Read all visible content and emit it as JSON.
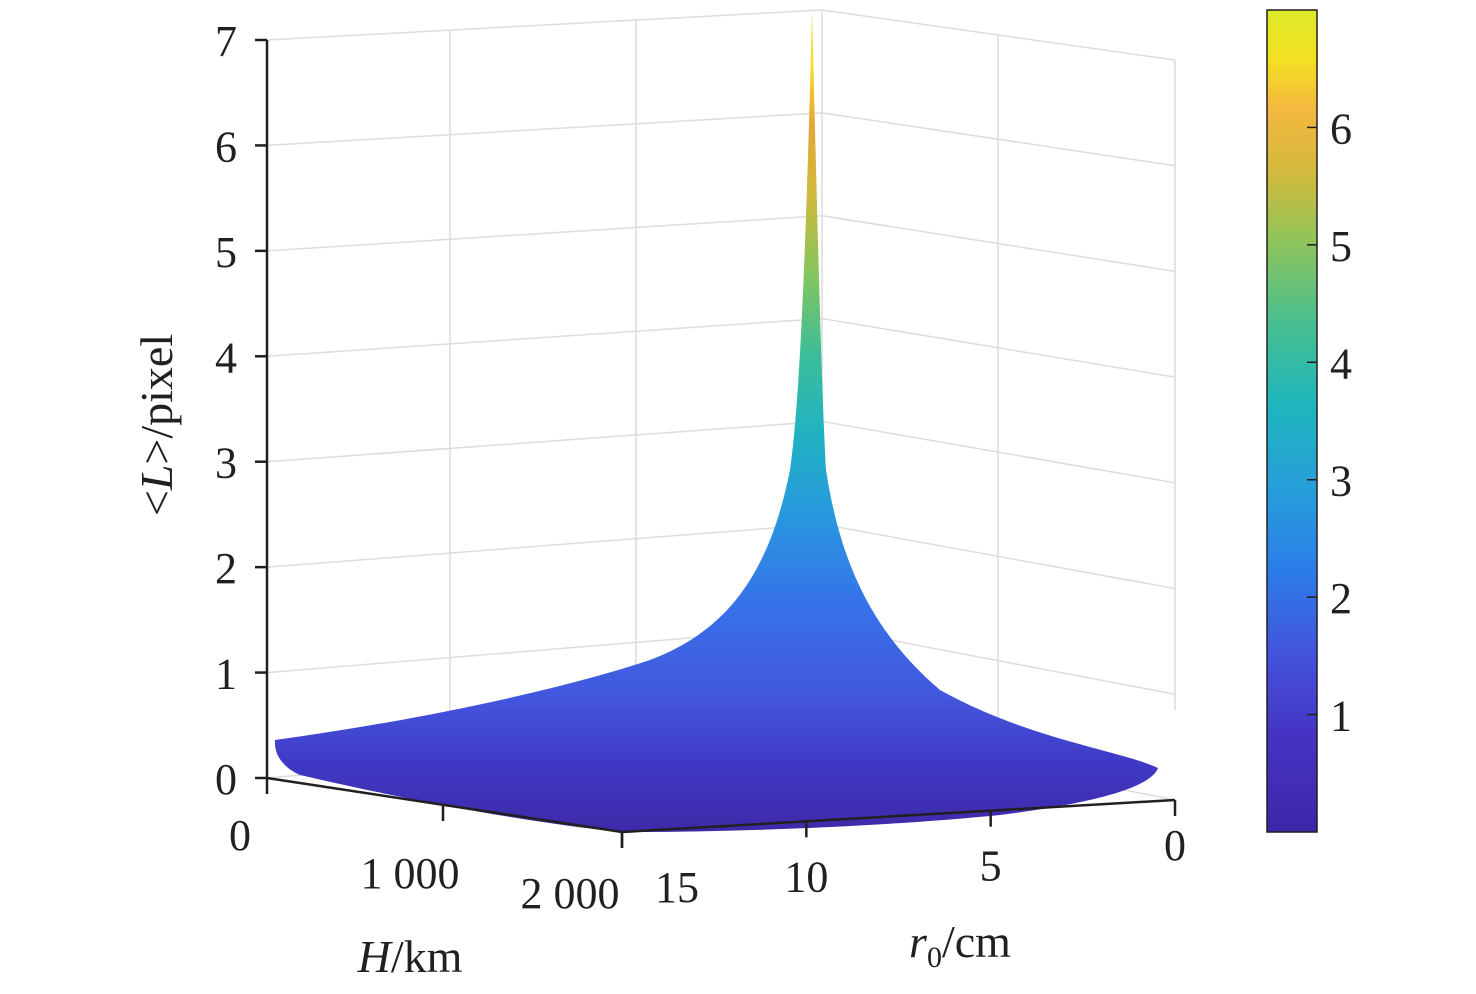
{
  "chart_data": {
    "type": "surface",
    "z_axis": {
      "label_prefix": "<",
      "label_var": "L",
      "label_suffix": ">/pixel",
      "ticks": [
        "0",
        "1",
        "2",
        "3",
        "4",
        "5",
        "6",
        "7"
      ],
      "range": [
        0,
        7
      ]
    },
    "h_axis": {
      "label_var": "H",
      "label_unit": "/km",
      "ticks": [
        "0",
        "1 000",
        "2 000"
      ],
      "range": [
        0,
        2000
      ]
    },
    "r_axis": {
      "label_var": "r",
      "label_sub": "0",
      "label_unit": "/cm",
      "ticks": [
        "15",
        "10",
        "5",
        "0"
      ],
      "range": [
        0,
        15
      ]
    },
    "colorbar": {
      "ticks": [
        "1",
        "2",
        "3",
        "4",
        "5",
        "6"
      ],
      "range": [
        0,
        7
      ],
      "colormap": [
        "#3e26a8",
        "#4746eb",
        "#3e6ffc",
        "#2797eb",
        "#1bb3cb",
        "#2ec09f",
        "#7bc662",
        "#d3bb38",
        "#fdbd3c",
        "#f5e51e",
        "#d8ea28"
      ]
    },
    "surface_peak": {
      "r0_cm": 10,
      "H_km": 0,
      "value": 7
    },
    "grid": true
  }
}
